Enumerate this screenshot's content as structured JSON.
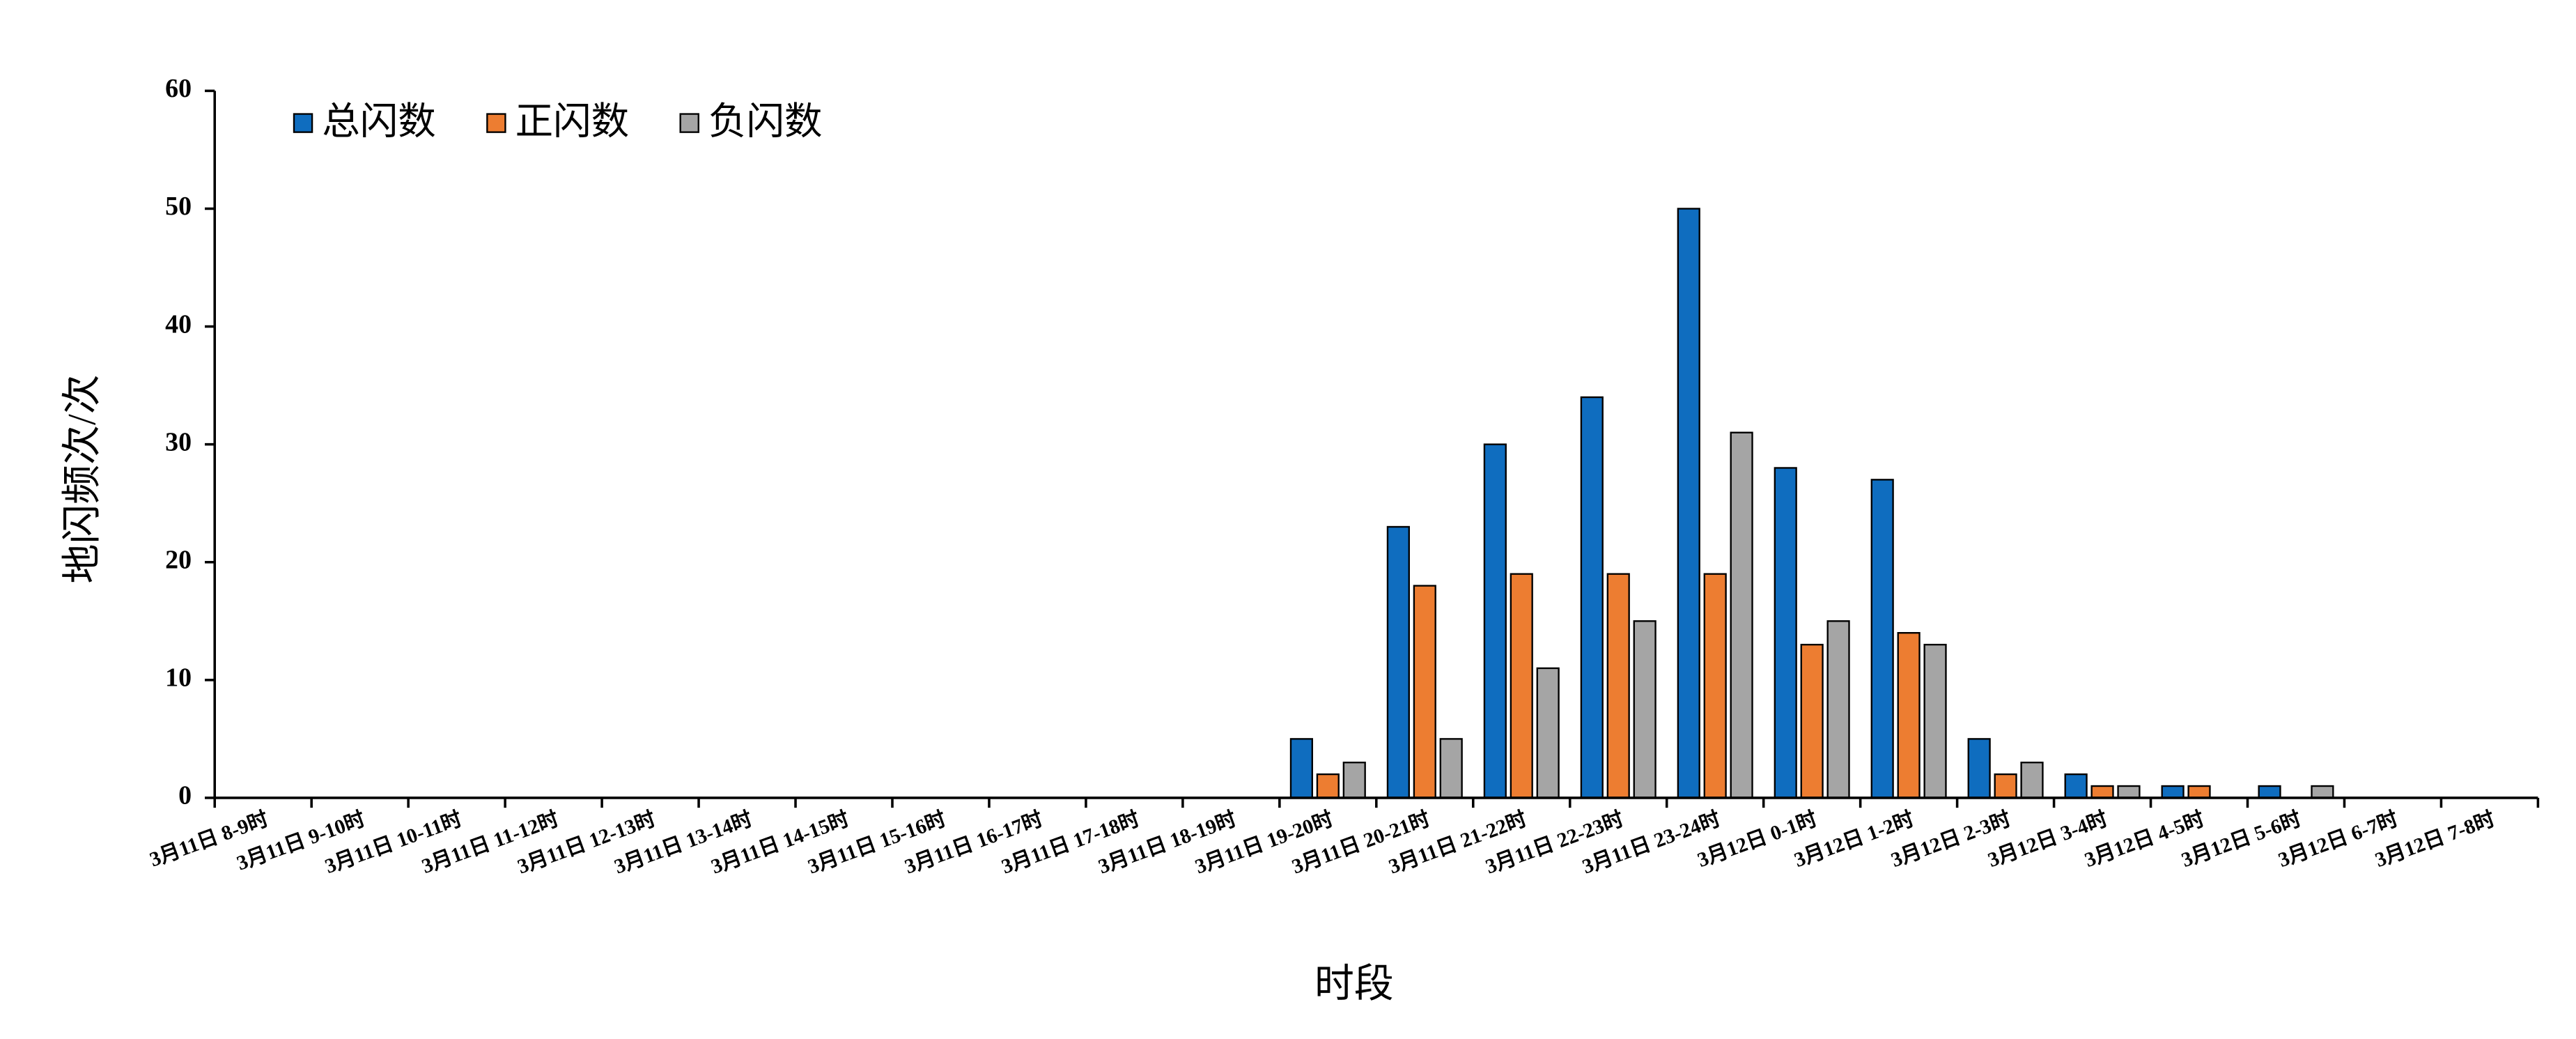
{
  "chart_data": {
    "type": "bar",
    "x_label": "时段",
    "y_label": "地闪频次/次",
    "categories": [
      "3月11日 8-9时",
      "3月11日 9-10时",
      "3月11日 10-11时",
      "3月11日 11-12时",
      "3月11日 12-13时",
      "3月11日 13-14时",
      "3月11日 14-15时",
      "3月11日 15-16时",
      "3月11日 16-17时",
      "3月11日 17-18时",
      "3月11日 18-19时",
      "3月11日 19-20时",
      "3月11日 20-21时",
      "3月11日 21-22时",
      "3月11日 22-23时",
      "3月11日 23-24时",
      "3月12日 0-1时",
      "3月12日 1-2时",
      "3月12日 2-3时",
      "3月12日 3-4时",
      "3月12日 4-5时",
      "3月12日 5-6时",
      "3月12日 6-7时",
      "3月12日 7-8时"
    ],
    "series": [
      {
        "name": "总闪数",
        "color": "#0f6dbf",
        "values": [
          0,
          0,
          0,
          0,
          0,
          0,
          0,
          0,
          0,
          0,
          0,
          5,
          23,
          30,
          34,
          50,
          28,
          27,
          5,
          2,
          1,
          1,
          0,
          0
        ]
      },
      {
        "name": "正闪数",
        "color": "#ed7d31",
        "values": [
          0,
          0,
          0,
          0,
          0,
          0,
          0,
          0,
          0,
          0,
          0,
          2,
          18,
          19,
          19,
          19,
          13,
          14,
          2,
          1,
          1,
          0,
          0,
          0
        ]
      },
      {
        "name": "负闪数",
        "color": "#a5a5a5",
        "values": [
          0,
          0,
          0,
          0,
          0,
          0,
          0,
          0,
          0,
          0,
          0,
          3,
          5,
          11,
          15,
          31,
          15,
          13,
          3,
          1,
          0,
          1,
          0,
          0
        ]
      }
    ],
    "ylim": [
      0,
      60
    ],
    "yticks": [
      0,
      10,
      20,
      30,
      40,
      50,
      60
    ],
    "legend": "top-left"
  }
}
